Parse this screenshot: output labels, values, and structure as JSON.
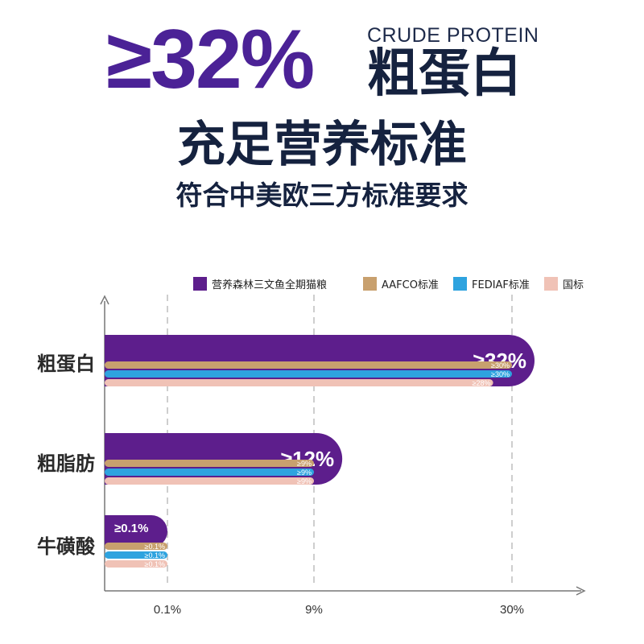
{
  "hero": {
    "percent": "≥32%",
    "english_label": "CRUDE PROTEIN",
    "chinese_label": "粗蛋白",
    "headline": "充足营养标准",
    "subline": "符合中美欧三方标准要求"
  },
  "colors": {
    "brand": "#5d1e8c",
    "aafco": "#c8a06e",
    "fediaf": "#2ea3df",
    "national": "#f0c2b6",
    "headline_text": "#15223f",
    "percent_text": "#4b2296"
  },
  "chart_data": {
    "type": "bar",
    "orientation": "horizontal",
    "categories": [
      "粗蛋白",
      "粗脂肪",
      "牛磺酸"
    ],
    "series": [
      {
        "name": "营养森林三文鱼全期猫粮",
        "values": [
          32,
          12,
          0.1
        ],
        "labels": [
          "≥32%",
          "≥12%",
          "≥0.1%"
        ],
        "color": "#5d1e8c"
      },
      {
        "name": "AAFCO标准",
        "values": [
          30,
          9,
          0.1
        ],
        "labels": [
          "≥30%",
          "≥9%",
          "≥0.1%"
        ],
        "color": "#c8a06e"
      },
      {
        "name": "FEDIAF标准",
        "values": [
          30,
          9,
          0.1
        ],
        "labels": [
          "≥30%",
          "≥9%",
          "≥0.1%"
        ],
        "color": "#2ea3df"
      },
      {
        "name": "国标",
        "values": [
          28,
          9,
          0.1
        ],
        "labels": [
          "≥28%",
          "≥9%",
          "≥0.1%"
        ],
        "color": "#f0c2b6"
      }
    ],
    "x_ticks": [
      "0.1%",
      "9%",
      "30%"
    ],
    "x_scale": "non-linear",
    "grid": "dashed vertical at ticks",
    "legend_position": "top-right"
  }
}
